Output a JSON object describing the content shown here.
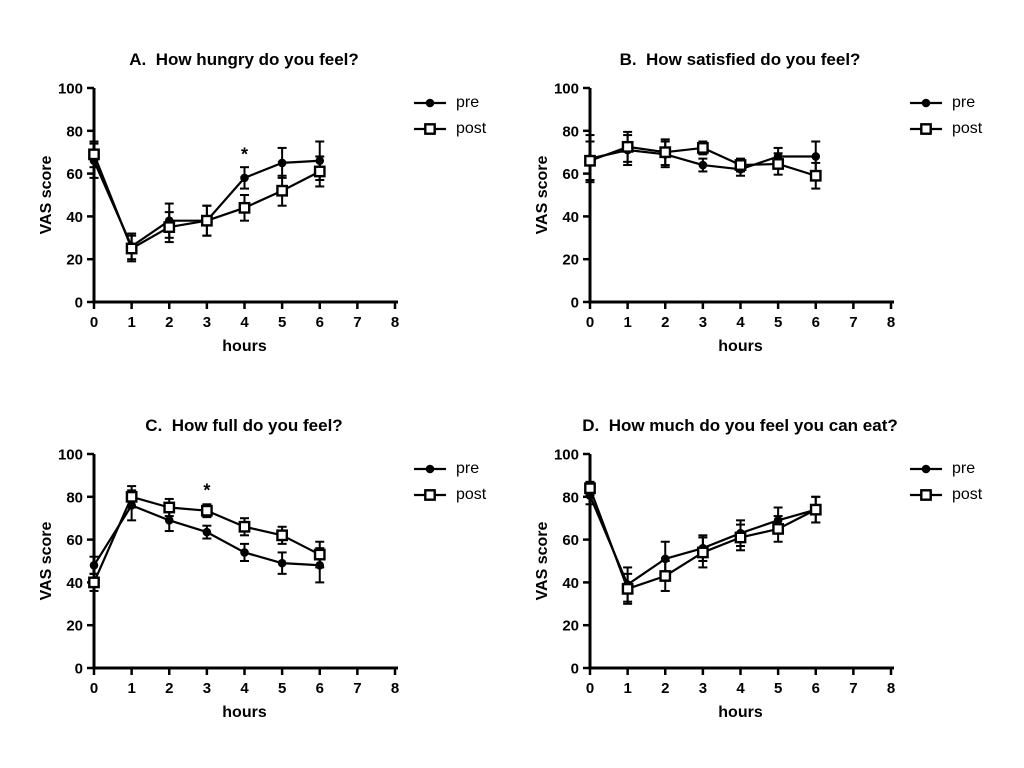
{
  "page": {
    "background_color": "#ffffff",
    "ink_color": "#000000"
  },
  "chart_data": [
    {
      "type": "line",
      "panel": "A",
      "title": "A.  How hungry do you feel?",
      "xlabel": "hours",
      "ylabel": "VAS score",
      "xlim": [
        0,
        8
      ],
      "ylim": [
        0,
        100
      ],
      "xticks": [
        0,
        1,
        2,
        3,
        4,
        5,
        6,
        7,
        8
      ],
      "yticks": [
        0,
        20,
        40,
        60,
        80,
        100
      ],
      "grid": false,
      "legend_position": "right",
      "x": [
        0,
        1,
        2,
        3,
        4,
        5,
        6
      ],
      "series": [
        {
          "name": "pre",
          "marker": "filled-circle",
          "values": [
            66,
            26,
            38,
            38,
            58,
            65,
            66
          ],
          "errors": [
            8,
            6,
            8,
            7,
            5,
            7,
            9
          ]
        },
        {
          "name": "post",
          "marker": "open-square",
          "values": [
            69,
            25,
            35,
            38,
            44,
            52,
            61
          ],
          "errors": [
            6,
            6,
            7,
            7,
            6,
            7,
            7
          ]
        }
      ],
      "annotations": [
        {
          "text": "*",
          "x": 4,
          "y": 69
        }
      ]
    },
    {
      "type": "line",
      "panel": "B",
      "title": "B.  How satisfied do you feel?",
      "xlabel": "hours",
      "ylabel": "VAS score",
      "xlim": [
        0,
        8
      ],
      "ylim": [
        0,
        100
      ],
      "xticks": [
        0,
        1,
        2,
        3,
        4,
        5,
        6,
        7,
        8
      ],
      "yticks": [
        0,
        20,
        40,
        60,
        80,
        100
      ],
      "grid": false,
      "legend_position": "right",
      "x": [
        0,
        1,
        2,
        3,
        4,
        5,
        6
      ],
      "series": [
        {
          "name": "pre",
          "marker": "filled-circle",
          "values": [
            67,
            71,
            69,
            64,
            62,
            68,
            68
          ],
          "errors": [
            11,
            7,
            6,
            3,
            3,
            4,
            7
          ]
        },
        {
          "name": "post",
          "marker": "open-square",
          "values": [
            66,
            72.5,
            70,
            72,
            64,
            64.5,
            59
          ],
          "errors": [
            9,
            7,
            6,
            3,
            3,
            5,
            6
          ]
        }
      ],
      "annotations": []
    },
    {
      "type": "line",
      "panel": "C",
      "title": "C.  How full do you feel?",
      "xlabel": "hours",
      "ylabel": "VAS score",
      "xlim": [
        0,
        8
      ],
      "ylim": [
        0,
        100
      ],
      "xticks": [
        0,
        1,
        2,
        3,
        4,
        5,
        6,
        7,
        8
      ],
      "yticks": [
        0,
        20,
        40,
        60,
        80,
        100
      ],
      "grid": false,
      "legend_position": "right",
      "x": [
        0,
        1,
        2,
        3,
        4,
        5,
        6
      ],
      "series": [
        {
          "name": "pre",
          "marker": "filled-circle",
          "values": [
            48,
            76,
            69,
            63.5,
            54,
            49,
            48
          ],
          "errors": [
            4,
            7,
            5,
            3,
            4,
            5,
            8
          ]
        },
        {
          "name": "post",
          "marker": "open-square",
          "values": [
            40,
            80,
            75,
            73.5,
            66,
            62,
            53
          ],
          "errors": [
            4,
            5,
            4,
            3,
            4,
            4,
            6
          ]
        }
      ],
      "annotations": [
        {
          "text": "*",
          "x": 3,
          "y": 83
        }
      ]
    },
    {
      "type": "line",
      "panel": "D",
      "title": "D.  How much do you feel you can eat?",
      "xlabel": "hours",
      "ylabel": "VAS score",
      "xlim": [
        0,
        8
      ],
      "ylim": [
        0,
        100
      ],
      "xticks": [
        0,
        1,
        2,
        3,
        4,
        5,
        6,
        7,
        8
      ],
      "yticks": [
        0,
        20,
        40,
        60,
        80,
        100
      ],
      "grid": false,
      "legend_position": "right",
      "x": [
        0,
        1,
        2,
        3,
        4,
        5,
        6
      ],
      "series": [
        {
          "name": "pre",
          "marker": "filled-circle",
          "values": [
            80.5,
            39,
            51,
            56,
            63,
            69,
            74
          ],
          "errors": [
            4,
            8,
            8,
            6,
            6,
            6,
            6
          ]
        },
        {
          "name": "post",
          "marker": "open-square",
          "values": [
            84,
            37,
            43,
            54,
            61,
            65,
            74
          ],
          "errors": [
            3,
            7,
            7,
            7,
            6,
            6,
            6
          ]
        }
      ],
      "annotations": []
    }
  ]
}
